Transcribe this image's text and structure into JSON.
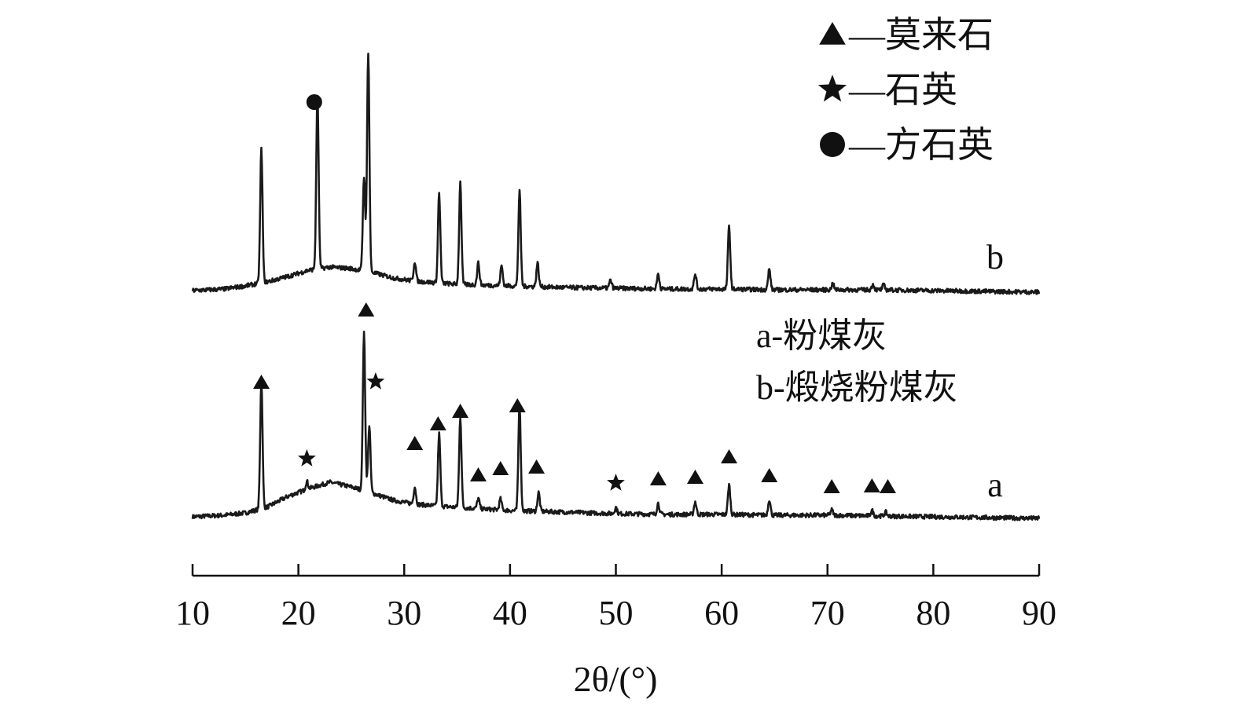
{
  "chart_data": {
    "type": "line",
    "xlabel": "2θ/(°)",
    "xlim": [
      10,
      90
    ],
    "x_ticks": [
      10,
      20,
      30,
      40,
      50,
      60,
      70,
      80,
      90
    ],
    "legend_markers": [
      {
        "marker": "triangle",
        "label": "—莫来石"
      },
      {
        "marker": "star",
        "label": "—石英"
      },
      {
        "marker": "circle",
        "label": "—方石英"
      }
    ],
    "notes": [
      "a-粉煤灰",
      "b-煅烧粉煤灰"
    ],
    "series": [
      {
        "name": "a",
        "label": "a",
        "background": [
          [
            10,
            0.2
          ],
          [
            13,
            0.4
          ],
          [
            15,
            0.7
          ],
          [
            17,
            1.4
          ],
          [
            19,
            2.8
          ],
          [
            21,
            3.8
          ],
          [
            23,
            4.6
          ],
          [
            25,
            4.0
          ],
          [
            27,
            3.2
          ],
          [
            29,
            2.3
          ],
          [
            31,
            1.8
          ],
          [
            35,
            1.4
          ],
          [
            40,
            1.0
          ],
          [
            45,
            0.8
          ],
          [
            50,
            0.6
          ],
          [
            55,
            0.5
          ],
          [
            60,
            0.5
          ],
          [
            65,
            0.4
          ],
          [
            70,
            0.4
          ],
          [
            75,
            0.3
          ],
          [
            80,
            0.2
          ],
          [
            85,
            0.1
          ],
          [
            90,
            0.0
          ]
        ],
        "peaks": [
          {
            "x": 16.5,
            "height": 16.2,
            "phase": "mullite"
          },
          {
            "x": 20.8,
            "height": 1.0,
            "phase": "quartz"
          },
          {
            "x": 26.2,
            "height": 20.0,
            "phase": "mullite"
          },
          {
            "x": 26.7,
            "height": 8.5,
            "phase": "quartz"
          },
          {
            "x": 31.0,
            "height": 2.2,
            "phase": "mullite"
          },
          {
            "x": 33.3,
            "height": 9.2,
            "phase": "mullite"
          },
          {
            "x": 35.3,
            "height": 11.5,
            "phase": "mullite"
          },
          {
            "x": 37.0,
            "height": 1.3,
            "phase": "mullite"
          },
          {
            "x": 39.1,
            "height": 1.4,
            "phase": "mullite"
          },
          {
            "x": 40.9,
            "height": 13.5,
            "phase": "mullite"
          },
          {
            "x": 42.7,
            "height": 2.4,
            "phase": "mullite"
          },
          {
            "x": 50.0,
            "height": 0.8,
            "phase": "quartz"
          },
          {
            "x": 54.0,
            "height": 1.4,
            "phase": "mullite"
          },
          {
            "x": 57.5,
            "height": 1.6,
            "phase": "mullite"
          },
          {
            "x": 60.7,
            "height": 3.8,
            "phase": "mullite"
          },
          {
            "x": 64.5,
            "height": 2.0,
            "phase": "mullite"
          },
          {
            "x": 70.4,
            "height": 0.7,
            "phase": "mullite"
          },
          {
            "x": 74.2,
            "height": 0.7,
            "phase": "mullite"
          },
          {
            "x": 75.5,
            "height": 0.5,
            "phase": "mullite"
          }
        ],
        "markers": [
          {
            "x": 16.5,
            "marker": "triangle",
            "level": 17.3
          },
          {
            "x": 20.8,
            "marker": "star",
            "level": 7.6
          },
          {
            "x": 26.4,
            "marker": "triangle",
            "level": 26.5
          },
          {
            "x": 27.3,
            "marker": "star",
            "level": 17.4
          },
          {
            "x": 31.0,
            "marker": "triangle",
            "level": 9.5
          },
          {
            "x": 33.2,
            "marker": "triangle",
            "level": 12.0
          },
          {
            "x": 35.3,
            "marker": "triangle",
            "level": 13.6
          },
          {
            "x": 37.0,
            "marker": "triangle",
            "level": 5.5
          },
          {
            "x": 39.1,
            "marker": "triangle",
            "level": 6.3
          },
          {
            "x": 40.7,
            "marker": "triangle",
            "level": 14.3
          },
          {
            "x": 42.5,
            "marker": "triangle",
            "level": 6.5
          },
          {
            "x": 50.0,
            "marker": "star",
            "level": 4.5
          },
          {
            "x": 54.0,
            "marker": "triangle",
            "level": 5.0
          },
          {
            "x": 57.5,
            "marker": "triangle",
            "level": 5.2
          },
          {
            "x": 60.7,
            "marker": "triangle",
            "level": 7.8
          },
          {
            "x": 64.5,
            "marker": "triangle",
            "level": 5.4
          },
          {
            "x": 70.4,
            "marker": "triangle",
            "level": 4.0
          },
          {
            "x": 74.2,
            "marker": "triangle",
            "level": 4.1
          },
          {
            "x": 75.7,
            "marker": "triangle",
            "level": 4.0
          }
        ]
      },
      {
        "name": "b",
        "label": "b",
        "background": [
          [
            10,
            0.2
          ],
          [
            13,
            0.4
          ],
          [
            15,
            0.8
          ],
          [
            17,
            1.3
          ],
          [
            19,
            2.0
          ],
          [
            21,
            2.8
          ],
          [
            23,
            3.2
          ],
          [
            25,
            3.0
          ],
          [
            27,
            2.5
          ],
          [
            29,
            1.8
          ],
          [
            31,
            1.4
          ],
          [
            35,
            1.0
          ],
          [
            40,
            0.8
          ],
          [
            45,
            0.6
          ],
          [
            50,
            0.5
          ],
          [
            55,
            0.4
          ],
          [
            60,
            0.4
          ],
          [
            65,
            0.3
          ],
          [
            70,
            0.3
          ],
          [
            75,
            0.3
          ],
          [
            80,
            0.2
          ],
          [
            85,
            0.1
          ],
          [
            90,
            0.0
          ]
        ],
        "peaks": [
          {
            "x": 16.5,
            "height": 17.0,
            "phase": "mullite"
          },
          {
            "x": 21.8,
            "height": 22.2,
            "phase": "cristobalite"
          },
          {
            "x": 26.2,
            "height": 12.0,
            "phase": "mullite"
          },
          {
            "x": 26.6,
            "height": 28.0,
            "phase": "quartz"
          },
          {
            "x": 31.0,
            "height": 2.5,
            "phase": "mullite"
          },
          {
            "x": 33.3,
            "height": 11.5,
            "phase": "mullite"
          },
          {
            "x": 35.3,
            "height": 13.0,
            "phase": "mullite"
          },
          {
            "x": 37.0,
            "height": 2.8,
            "phase": "mullite"
          },
          {
            "x": 39.2,
            "height": 2.5,
            "phase": "mullite"
          },
          {
            "x": 40.9,
            "height": 12.0,
            "phase": "mullite"
          },
          {
            "x": 42.6,
            "height": 3.0,
            "phase": "mullite"
          },
          {
            "x": 49.5,
            "height": 1.0,
            "phase": "quartz"
          },
          {
            "x": 54.0,
            "height": 1.9,
            "phase": "mullite"
          },
          {
            "x": 57.5,
            "height": 1.9,
            "phase": "mullite"
          },
          {
            "x": 60.7,
            "height": 8.0,
            "phase": "mullite"
          },
          {
            "x": 64.5,
            "height": 2.6,
            "phase": "mullite"
          },
          {
            "x": 70.5,
            "height": 0.8,
            "phase": "mullite"
          },
          {
            "x": 74.3,
            "height": 0.7,
            "phase": "mullite"
          },
          {
            "x": 75.3,
            "height": 0.6,
            "phase": "mullite"
          }
        ],
        "markers": [
          {
            "x": 21.5,
            "marker": "circle",
            "level": 24.2
          }
        ]
      }
    ],
    "grid": false,
    "legend": "top-right"
  }
}
